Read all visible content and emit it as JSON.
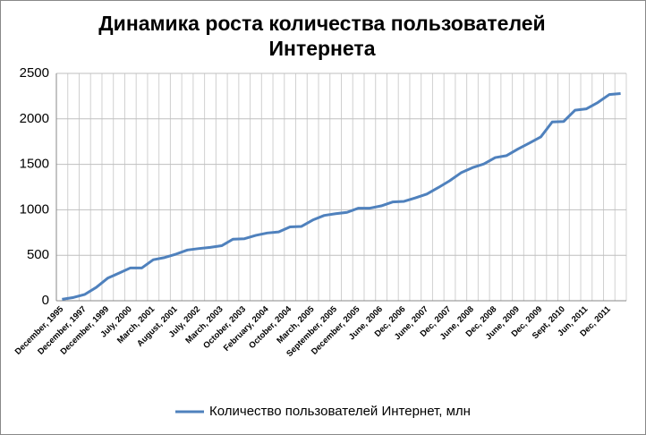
{
  "chart_data": {
    "type": "line",
    "title": "Динамика роста количества пользователей Интернета",
    "categories": [
      "December, 1995",
      null,
      "December, 1997",
      null,
      "December, 1999",
      null,
      "July, 2000",
      null,
      "March, 2001",
      null,
      "August, 2001",
      null,
      "July, 2002",
      null,
      "March, 2003",
      null,
      "October, 2003",
      null,
      "February, 2004",
      null,
      "October, 2004",
      null,
      "March, 2005",
      null,
      "September, 2005",
      null,
      "December, 2005",
      null,
      "June, 2006",
      null,
      "Dec, 2006",
      null,
      "June, 2007",
      null,
      "Dec, 2007",
      null,
      "June, 2008",
      null,
      "Dec, 2008",
      null,
      "June, 2009",
      null,
      "Dec, 2009",
      null,
      "Sept, 2010",
      null,
      "Jun, 2011",
      null,
      "Dec, 2011",
      null
    ],
    "series": [
      {
        "name": "Количество пользователей Интернет, млн",
        "color": "#4f81bd",
        "values": [
          16,
          36,
          70,
          147,
          248,
          304,
          361,
          361,
          451,
          475,
          513,
          558,
          574,
          587,
          605,
          677,
          682,
          719,
          745,
          757,
          812,
          817,
          888,
          938,
          957,
          972,
          1018,
          1018,
          1043,
          1086,
          1093,
          1131,
          1173,
          1244,
          1319,
          1407,
          1463,
          1504,
          1574,
          1596,
          1669,
          1734,
          1802,
          1966,
          1971,
          2095,
          2110,
          2180,
          2267,
          2279
        ]
      }
    ],
    "ylim": [
      0,
      2500
    ],
    "yticks": [
      0,
      500,
      1000,
      1500,
      2000,
      2500
    ],
    "grid": true,
    "legend": "bottom"
  }
}
